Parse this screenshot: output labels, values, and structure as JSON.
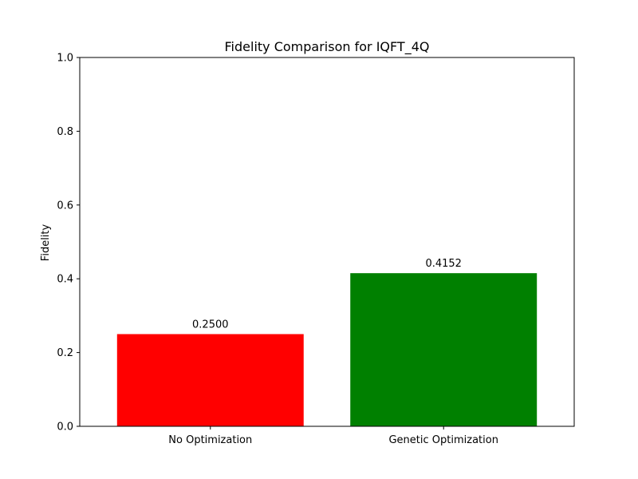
{
  "chart_data": {
    "type": "bar",
    "title": "Fidelity Comparison for IQFT_4Q",
    "xlabel": "",
    "ylabel": "Fidelity",
    "categories": [
      "No Optimization",
      "Genetic Optimization"
    ],
    "values": [
      0.25,
      0.4152
    ],
    "value_labels": [
      "0.2500",
      "0.4152"
    ],
    "colors": [
      "#ff0000",
      "#008000"
    ],
    "ylim": [
      0,
      1
    ],
    "yticks": [
      0.0,
      0.2,
      0.4,
      0.6,
      0.8,
      1.0
    ],
    "ytick_labels": [
      "0.0",
      "0.2",
      "0.4",
      "0.6",
      "0.8",
      "1.0"
    ],
    "grid": false,
    "legend": false
  }
}
